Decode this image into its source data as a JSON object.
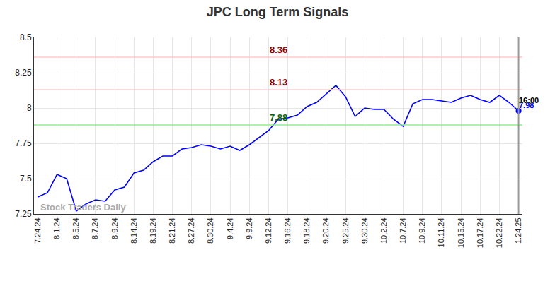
{
  "chart_data": {
    "type": "line",
    "title": "JPC Long Term Signals",
    "categories": [
      "7.24.24",
      null,
      "8.1.24",
      null,
      "8.5.24",
      null,
      "8.7.24",
      null,
      "8.9.24",
      null,
      "8.14.24",
      null,
      "8.19.24",
      null,
      "8.21.24",
      null,
      "8.27.24",
      null,
      "8.30.24",
      null,
      "9.4.24",
      null,
      "9.9.24",
      null,
      "9.12.24",
      null,
      "9.16.24",
      null,
      "9.18.24",
      null,
      "9.20.24",
      null,
      "9.25.24",
      null,
      "9.30.24",
      null,
      "10.2.24",
      null,
      "10.7.24",
      null,
      "10.9.24",
      null,
      "10.11.24",
      null,
      "10.15.24",
      null,
      "10.17.24",
      null,
      "10.22.24",
      null,
      "1.24.25"
    ],
    "values": [
      7.37,
      7.4,
      7.53,
      7.5,
      7.27,
      7.32,
      7.35,
      7.34,
      7.42,
      7.44,
      7.54,
      7.56,
      7.62,
      7.66,
      7.66,
      7.71,
      7.72,
      7.74,
      7.73,
      7.71,
      7.73,
      7.7,
      7.74,
      7.79,
      7.84,
      7.92,
      7.93,
      7.95,
      8.01,
      8.04,
      8.1,
      8.16,
      8.08,
      7.94,
      8.0,
      7.99,
      7.99,
      7.92,
      7.87,
      8.03,
      8.06,
      8.06,
      8.05,
      8.04,
      8.07,
      8.09,
      8.06,
      8.04,
      8.09,
      8.04,
      7.98
    ],
    "color": "#0000ff",
    "ylim": [
      7.25,
      8.5
    ],
    "yticks": [
      7.25,
      7.5,
      7.75,
      8,
      8.25,
      8.5
    ],
    "grid": true,
    "reference_lines": [
      {
        "value": 8.36,
        "label": "8.36",
        "color": "#ffcccc",
        "label_color": "#8b0000"
      },
      {
        "value": 8.13,
        "label": "8.13",
        "color": "#ffcccc",
        "label_color": "#8b0000"
      },
      {
        "value": 7.88,
        "label": "7.88",
        "color": "#90ee90",
        "label_color": "#006400"
      }
    ],
    "end_labels": {
      "time": "16:00",
      "value": 7.98
    },
    "watermark": "Stock Traders Daily"
  }
}
